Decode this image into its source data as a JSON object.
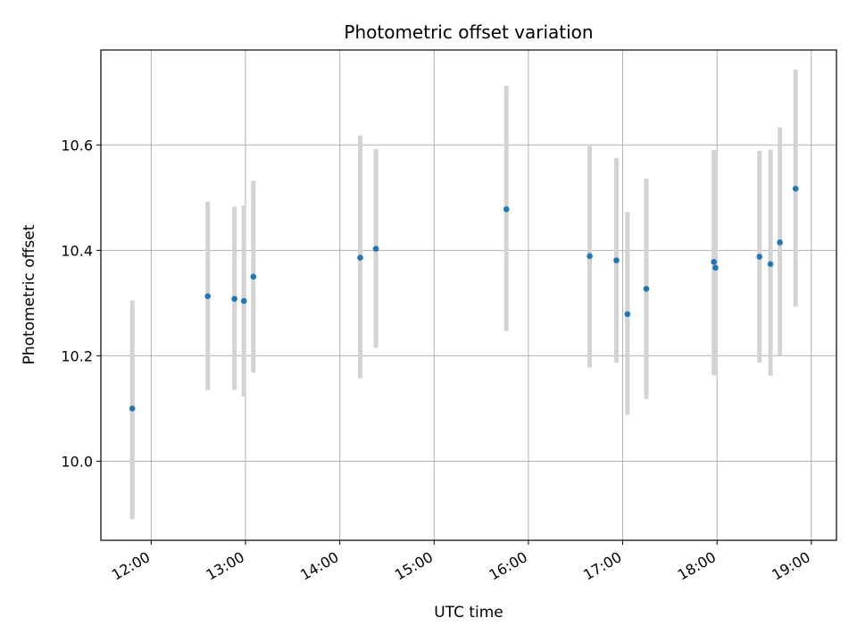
{
  "chart_data": {
    "type": "scatter",
    "title": "Photometric offset variation",
    "xlabel": "UTC time",
    "ylabel": "Photometric offset",
    "x_ticks": [
      "12:00",
      "13:00",
      "14:00",
      "15:00",
      "16:00",
      "17:00",
      "18:00",
      "19:00"
    ],
    "y_ticks": [
      "10.0",
      "10.2",
      "10.4",
      "10.6"
    ],
    "xlim": [
      "11:28",
      "19:16"
    ],
    "ylim": [
      9.85,
      10.78
    ],
    "grid": true,
    "marker_color": "#1f77b4",
    "errorbar_color": "#d3d3d3",
    "points": [
      {
        "x": "11:48",
        "y": 10.1,
        "yerr_low": 9.89,
        "yerr_high": 10.305
      },
      {
        "x": "12:36",
        "y": 10.313,
        "yerr_low": 10.135,
        "yerr_high": 10.492
      },
      {
        "x": "12:53",
        "y": 10.308,
        "yerr_low": 10.135,
        "yerr_high": 10.483
      },
      {
        "x": "12:59",
        "y": 10.304,
        "yerr_low": 10.123,
        "yerr_high": 10.485
      },
      {
        "x": "13:05",
        "y": 10.35,
        "yerr_low": 10.168,
        "yerr_high": 10.532
      },
      {
        "x": "14:13",
        "y": 10.386,
        "yerr_low": 10.157,
        "yerr_high": 10.618
      },
      {
        "x": "14:23",
        "y": 10.403,
        "yerr_low": 10.215,
        "yerr_high": 10.592
      },
      {
        "x": "15:46",
        "y": 10.478,
        "yerr_low": 10.247,
        "yerr_high": 10.712
      },
      {
        "x": "16:39",
        "y": 10.389,
        "yerr_low": 10.178,
        "yerr_high": 10.598
      },
      {
        "x": "16:56",
        "y": 10.381,
        "yerr_low": 10.187,
        "yerr_high": 10.575
      },
      {
        "x": "17:03",
        "y": 10.279,
        "yerr_low": 10.088,
        "yerr_high": 10.473
      },
      {
        "x": "17:15",
        "y": 10.327,
        "yerr_low": 10.118,
        "yerr_high": 10.536
      },
      {
        "x": "17:58",
        "y": 10.378,
        "yerr_low": 10.163,
        "yerr_high": 10.59
      },
      {
        "x": "17:59",
        "y": 10.367,
        "yerr_low": 10.163,
        "yerr_high": 10.58
      },
      {
        "x": "18:27",
        "y": 10.388,
        "yerr_low": 10.187,
        "yerr_high": 10.589
      },
      {
        "x": "18:34",
        "y": 10.374,
        "yerr_low": 10.162,
        "yerr_high": 10.591
      },
      {
        "x": "18:40",
        "y": 10.415,
        "yerr_low": 10.2,
        "yerr_high": 10.633
      },
      {
        "x": "18:50",
        "y": 10.517,
        "yerr_low": 10.293,
        "yerr_high": 10.743
      }
    ]
  }
}
